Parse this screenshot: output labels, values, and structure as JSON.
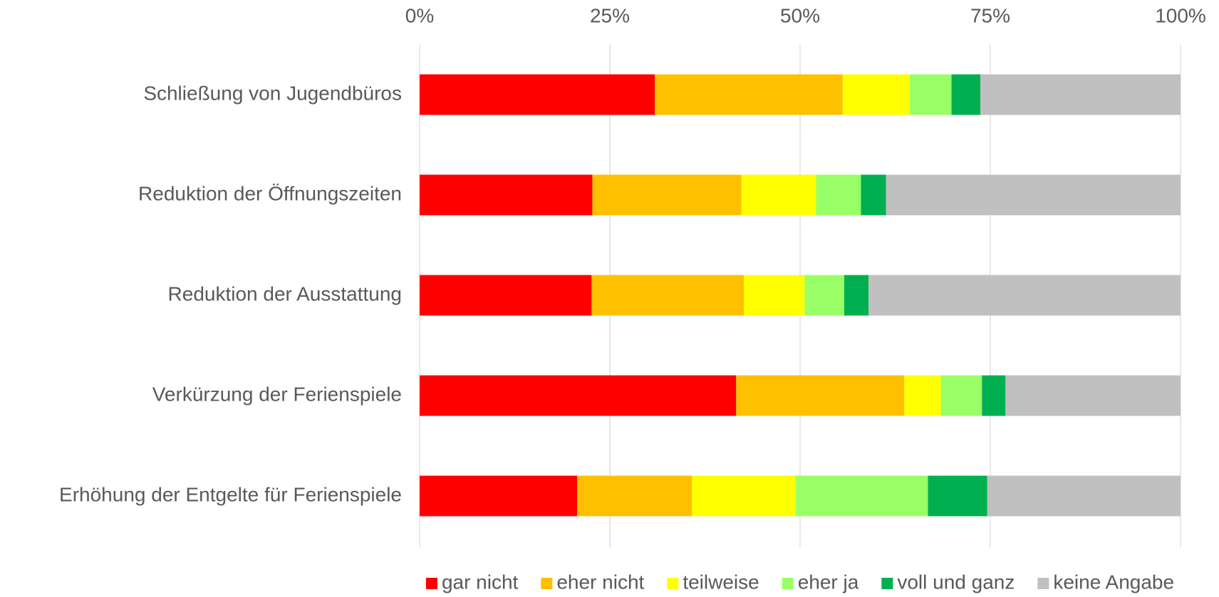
{
  "chart_data": {
    "type": "stacked_barh",
    "categories": [
      "Schließung von Jugendbüros",
      "Reduktion der Öffnungszeiten",
      "Reduktion der Ausstattung",
      "Verkürzung der Ferienspiele",
      "Erhöhung der Entgelte für Ferienspiele"
    ],
    "series": [
      {
        "name": "gar nicht",
        "color": "#ff0000",
        "values": [
          30.9,
          22.7,
          22.6,
          41.6,
          20.7
        ]
      },
      {
        "name": "eher nicht",
        "color": "#ffc000",
        "values": [
          24.7,
          19.6,
          20.0,
          22.1,
          15.1
        ]
      },
      {
        "name": "teilweise",
        "color": "#ffff00",
        "values": [
          8.8,
          9.8,
          8.0,
          4.8,
          13.6
        ]
      },
      {
        "name": "eher ja",
        "color": "#99ff66",
        "values": [
          5.5,
          5.9,
          5.2,
          5.4,
          17.4
        ]
      },
      {
        "name": "voll und ganz",
        "color": "#00b050",
        "values": [
          3.8,
          3.3,
          3.2,
          3.1,
          7.8
        ]
      },
      {
        "name": "keine Angabe",
        "color": "#c0c0c0",
        "values": [
          26.3,
          38.7,
          41.0,
          23.0,
          25.4
        ]
      }
    ],
    "xlim": [
      0,
      100
    ],
    "xticks": [
      {
        "value": 0,
        "label": "0%"
      },
      {
        "value": 25,
        "label": "25%"
      },
      {
        "value": 50,
        "label": "50%"
      },
      {
        "value": 75,
        "label": "75%"
      },
      {
        "value": 100,
        "label": "100%"
      }
    ],
    "grid": true,
    "legend": "bottom"
  }
}
